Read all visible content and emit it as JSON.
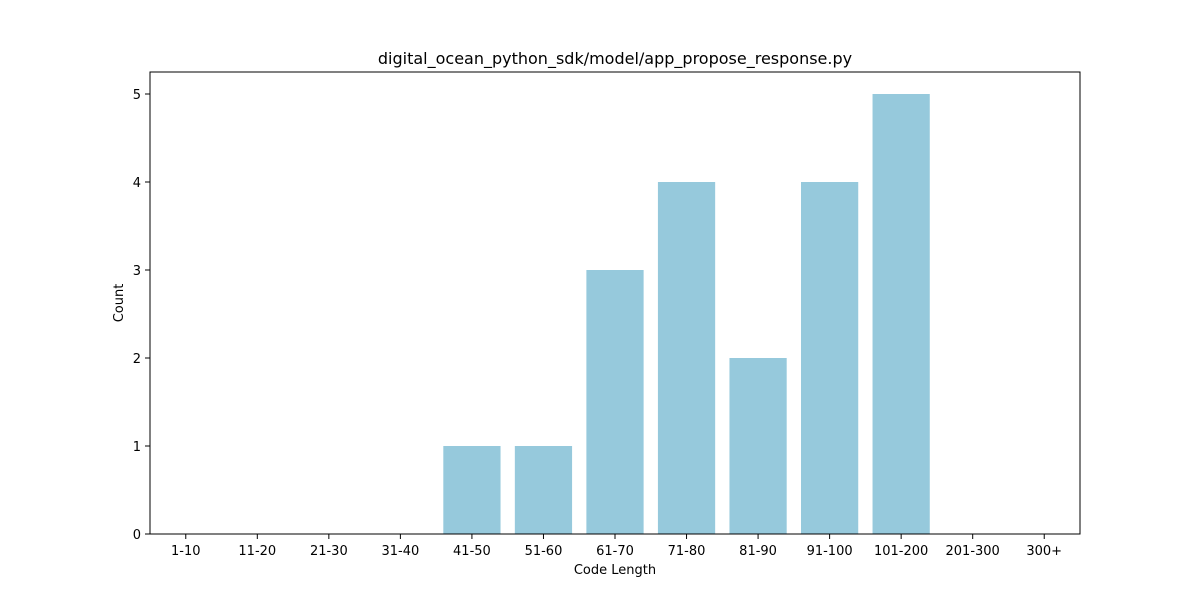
{
  "chart_data": {
    "type": "bar",
    "title": "digital_ocean_python_sdk/model/app_propose_response.py",
    "xlabel": "Code Length",
    "ylabel": "Count",
    "categories": [
      "1-10",
      "11-20",
      "21-30",
      "31-40",
      "41-50",
      "51-60",
      "61-70",
      "71-80",
      "81-90",
      "91-100",
      "101-200",
      "201-300",
      "300+"
    ],
    "values": [
      0,
      0,
      0,
      0,
      1,
      1,
      3,
      4,
      2,
      4,
      5,
      0,
      0
    ],
    "ylim": [
      0,
      5.25
    ],
    "yticks": [
      0,
      1,
      2,
      3,
      4,
      5
    ],
    "bar_color": "#96c9dc",
    "grid": false,
    "legend": "none"
  }
}
